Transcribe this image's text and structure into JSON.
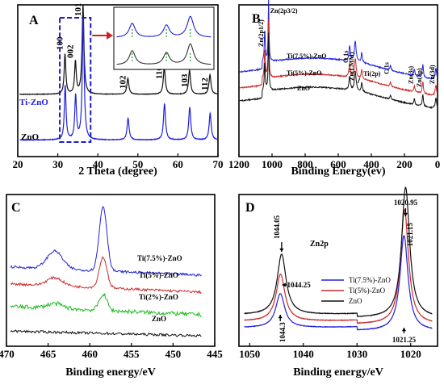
{
  "chart_data": [
    {
      "id": "A",
      "type": "line",
      "panel_label": "A",
      "xlabel": "2 Theta (degree)",
      "ylabel": "",
      "xlim": [
        20,
        70
      ],
      "xticks": [
        "20",
        "30",
        "40",
        "50",
        "60",
        "70"
      ],
      "peaks": [
        {
          "x": 31.8,
          "label": "100"
        },
        {
          "x": 34.4,
          "label": "002"
        },
        {
          "x": 36.3,
          "label": "101"
        },
        {
          "x": 47.5,
          "label": "102"
        },
        {
          "x": 56.6,
          "label": "110"
        },
        {
          "x": 62.9,
          "label": "103"
        },
        {
          "x": 68.0,
          "label": "112"
        }
      ],
      "series": [
        {
          "name": "Ti-ZnO",
          "color": "#2020dd",
          "offset": 0.42
        },
        {
          "name": "ZnO",
          "color": "#111111",
          "offset": 0.05
        }
      ],
      "inset": true,
      "highlight_range": [
        30.5,
        38.2
      ]
    },
    {
      "id": "B",
      "type": "line",
      "panel_label": "B",
      "xlabel": "Binding Energy(ev)",
      "ylabel": "",
      "xlim": [
        1200,
        0
      ],
      "xticks": [
        "1200",
        "1000",
        "800",
        "600",
        "400",
        "200",
        "0"
      ],
      "annotations": [
        {
          "x": 1021,
          "label": "Zn(2p3/2)"
        },
        {
          "x": 1044,
          "label": "Zn(2p1/2)"
        },
        {
          "x": 531,
          "label": "O 1s"
        },
        {
          "x": 497,
          "label": "Zn(LMM)"
        },
        {
          "x": 458,
          "label": "Ti(2p)"
        },
        {
          "x": 285,
          "label": "C 1s"
        },
        {
          "x": 140,
          "label": "Zn(3s)"
        },
        {
          "x": 89,
          "label": "Zn(3p)"
        },
        {
          "x": 10,
          "label": "Zn(3d)"
        }
      ],
      "series": [
        {
          "name": "Ti(7.5%)-ZnO",
          "color": "#2020dd"
        },
        {
          "name": "Ti(5%)-ZnO",
          "color": "#cc2a2a"
        },
        {
          "name": "ZnO",
          "color": "#111111"
        }
      ]
    },
    {
      "id": "C",
      "type": "line",
      "panel_label": "C",
      "xlabel": "Binding energy/eV",
      "ylabel": "",
      "xlim": [
        470,
        445
      ],
      "xticks": [
        "470",
        "465",
        "460",
        "455",
        "450",
        "445"
      ],
      "series": [
        {
          "name": "Ti(7.5%)-ZnO",
          "color": "#2020dd"
        },
        {
          "name": "Ti(5%)-ZnO",
          "color": "#cc2a2a"
        },
        {
          "name": "Ti(2%)-ZnO",
          "color": "#22bb22"
        },
        {
          "name": "ZnO",
          "color": "#111111"
        }
      ],
      "peaks": [
        {
          "x": 464.2
        },
        {
          "x": 458.4
        }
      ]
    },
    {
      "id": "D",
      "type": "line",
      "panel_label": "D",
      "xlabel": "Binding energy/eV",
      "ylabel": "",
      "xlim": [
        1052,
        1015
      ],
      "xticks": [
        "1050",
        "1040",
        "1030",
        "1020"
      ],
      "title": "Zn2p",
      "annotations": [
        {
          "x": 1044.05,
          "label": "1044.05"
        },
        {
          "x": 1044.25,
          "label": "1044.25"
        },
        {
          "x": 1044.3,
          "label": "1044.3"
        },
        {
          "x": 1020.95,
          "label": "1020.95"
        },
        {
          "x": 1021.15,
          "label": "1021.15"
        },
        {
          "x": 1021.25,
          "label": "1021.25"
        }
      ],
      "legend": "center",
      "series": [
        {
          "name": "Ti(7.5%)-ZnO",
          "color": "#2020dd",
          "peaks": [
            1044.3,
            1021.25
          ]
        },
        {
          "name": "Ti(5%)-ZnO",
          "color": "#cc2a2a",
          "peaks": [
            1044.25,
            1021.15
          ]
        },
        {
          "name": "ZnO",
          "color": "#111111",
          "peaks": [
            1044.05,
            1020.95
          ]
        }
      ]
    }
  ]
}
